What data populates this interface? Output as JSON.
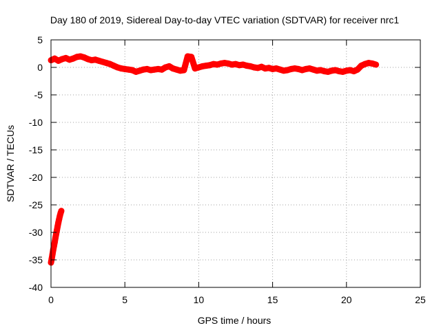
{
  "chart_data": {
    "type": "scatter",
    "title": "Day 180 of 2019, Sidereal Day-to-day VTEC variation (SDTVAR) for receiver nrc1",
    "xlabel": "GPS time / hours",
    "ylabel": "SDTVAR / TECUs",
    "xlim": [
      0,
      25
    ],
    "ylim": [
      -40,
      5
    ],
    "xticks": [
      0,
      5,
      10,
      15,
      20,
      25
    ],
    "yticks": [
      5,
      0,
      -5,
      -10,
      -15,
      -20,
      -25,
      -30,
      -35,
      -40
    ],
    "grid": true,
    "series": [
      {
        "name": "SDTVAR",
        "color": "#ff0000",
        "marker": "plus",
        "points": [
          [
            0.0,
            -35.5
          ],
          [
            0.05,
            -34.8
          ],
          [
            0.1,
            -34.0
          ],
          [
            0.15,
            -33.2
          ],
          [
            0.2,
            -32.5
          ],
          [
            0.25,
            -31.8
          ],
          [
            0.3,
            -31.0
          ],
          [
            0.35,
            -30.3
          ],
          [
            0.4,
            -29.6
          ],
          [
            0.45,
            -28.9
          ],
          [
            0.5,
            -28.2
          ],
          [
            0.55,
            -27.6
          ],
          [
            0.6,
            -27.0
          ],
          [
            0.65,
            -26.5
          ],
          [
            0.7,
            -26.1
          ],
          [
            0.0,
            1.3
          ],
          [
            0.25,
            1.6
          ],
          [
            0.5,
            1.2
          ],
          [
            0.75,
            1.5
          ],
          [
            1.0,
            1.7
          ],
          [
            1.25,
            1.4
          ],
          [
            1.5,
            1.6
          ],
          [
            1.75,
            1.9
          ],
          [
            2.0,
            2.0
          ],
          [
            2.25,
            1.8
          ],
          [
            2.5,
            1.5
          ],
          [
            2.75,
            1.3
          ],
          [
            3.0,
            1.4
          ],
          [
            3.25,
            1.2
          ],
          [
            3.5,
            1.0
          ],
          [
            3.75,
            0.8
          ],
          [
            4.0,
            0.6
          ],
          [
            4.25,
            0.3
          ],
          [
            4.5,
            0.0
          ],
          [
            4.75,
            -0.2
          ],
          [
            5.0,
            -0.3
          ],
          [
            5.25,
            -0.4
          ],
          [
            5.5,
            -0.5
          ],
          [
            5.75,
            -0.8
          ],
          [
            6.0,
            -0.6
          ],
          [
            6.25,
            -0.4
          ],
          [
            6.5,
            -0.3
          ],
          [
            6.75,
            -0.5
          ],
          [
            7.0,
            -0.4
          ],
          [
            7.25,
            -0.3
          ],
          [
            7.5,
            -0.4
          ],
          [
            7.75,
            0.0
          ],
          [
            8.0,
            0.2
          ],
          [
            8.25,
            -0.2
          ],
          [
            8.5,
            -0.4
          ],
          [
            8.75,
            -0.6
          ],
          [
            9.0,
            -0.5
          ],
          [
            9.25,
            2.0
          ],
          [
            9.5,
            1.9
          ],
          [
            9.75,
            -0.2
          ],
          [
            10.0,
            0.0
          ],
          [
            10.25,
            0.2
          ],
          [
            10.5,
            0.3
          ],
          [
            10.75,
            0.4
          ],
          [
            11.0,
            0.6
          ],
          [
            11.25,
            0.5
          ],
          [
            11.5,
            0.7
          ],
          [
            11.75,
            0.8
          ],
          [
            12.0,
            0.7
          ],
          [
            12.25,
            0.5
          ],
          [
            12.5,
            0.6
          ],
          [
            12.75,
            0.4
          ],
          [
            13.0,
            0.5
          ],
          [
            13.25,
            0.3
          ],
          [
            13.5,
            0.2
          ],
          [
            13.75,
            0.0
          ],
          [
            14.0,
            -0.1
          ],
          [
            14.25,
            0.1
          ],
          [
            14.5,
            -0.2
          ],
          [
            14.75,
            -0.1
          ],
          [
            15.0,
            -0.3
          ],
          [
            15.25,
            -0.2
          ],
          [
            15.5,
            -0.4
          ],
          [
            15.75,
            -0.6
          ],
          [
            16.0,
            -0.5
          ],
          [
            16.25,
            -0.3
          ],
          [
            16.5,
            -0.2
          ],
          [
            16.75,
            -0.3
          ],
          [
            17.0,
            -0.5
          ],
          [
            17.25,
            -0.3
          ],
          [
            17.5,
            -0.2
          ],
          [
            17.75,
            -0.4
          ],
          [
            18.0,
            -0.6
          ],
          [
            18.25,
            -0.5
          ],
          [
            18.5,
            -0.7
          ],
          [
            18.75,
            -0.8
          ],
          [
            19.0,
            -0.6
          ],
          [
            19.25,
            -0.5
          ],
          [
            19.5,
            -0.7
          ],
          [
            19.75,
            -0.8
          ],
          [
            20.0,
            -0.6
          ],
          [
            20.25,
            -0.5
          ],
          [
            20.5,
            -0.7
          ],
          [
            20.75,
            -0.4
          ],
          [
            21.0,
            0.3
          ],
          [
            21.25,
            0.6
          ],
          [
            21.5,
            0.8
          ],
          [
            21.75,
            0.7
          ],
          [
            22.0,
            0.5
          ]
        ]
      }
    ]
  }
}
